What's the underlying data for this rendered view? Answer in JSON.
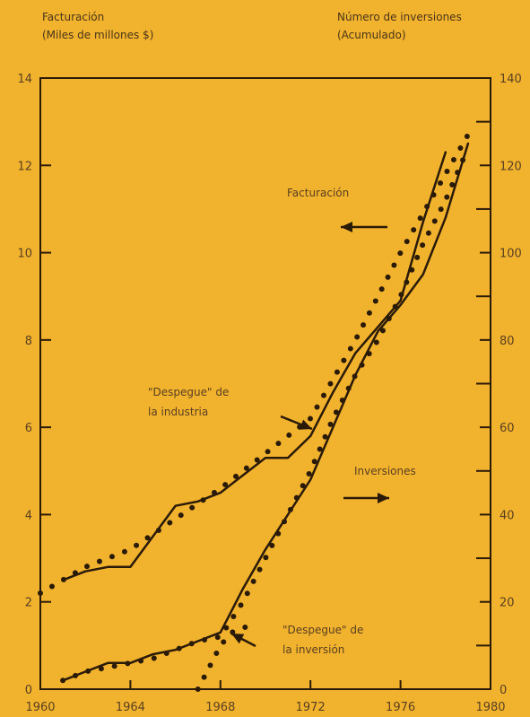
{
  "chart_data": {
    "type": "line",
    "left_axis_title": [
      "Facturación",
      "(Miles de millones $)"
    ],
    "right_axis_title": [
      "Número de inversiones",
      "(Acumulado)"
    ],
    "xlim": [
      1960,
      1980
    ],
    "ylim_left": [
      0,
      14
    ],
    "ylim_right": [
      0,
      140
    ],
    "x_ticks": [
      1960,
      1964,
      1968,
      1972,
      1976,
      1980
    ],
    "y_ticks_left": [
      0,
      2,
      4,
      6,
      8,
      10,
      12,
      14
    ],
    "y_ticks_right": [
      0,
      20,
      40,
      60,
      80,
      100,
      120,
      140
    ],
    "grid": false,
    "series": [
      {
        "key": "facturacion_real",
        "axis": "left",
        "style": "solid",
        "x": [
          1961,
          1962,
          1963,
          1964,
          1965,
          1966,
          1967,
          1968,
          1969,
          1970,
          1971,
          1972,
          1973,
          1974,
          1975,
          1976,
          1977,
          1978
        ],
        "y": [
          2.5,
          2.7,
          2.8,
          2.8,
          3.5,
          4.2,
          4.3,
          4.5,
          4.9,
          5.3,
          5.3,
          5.8,
          6.8,
          7.7,
          8.3,
          8.9,
          10.7,
          12.3
        ]
      },
      {
        "key": "facturacion_tendencia",
        "axis": "left",
        "style": "dotted",
        "x": [
          1960,
          1962,
          1964,
          1966,
          1968,
          1970,
          1972,
          1974,
          1976,
          1978,
          1979
        ],
        "y": [
          2.2,
          2.8,
          3.2,
          3.9,
          4.6,
          5.4,
          6.2,
          8.0,
          10.0,
          11.8,
          12.7
        ]
      },
      {
        "key": "inversiones_real",
        "axis": "right",
        "style": "solid",
        "x": [
          1961,
          1962,
          1963,
          1964,
          1965,
          1966,
          1967,
          1968,
          1969,
          1970,
          1971,
          1972,
          1973,
          1974,
          1975,
          1976,
          1977,
          1978,
          1979
        ],
        "y": [
          2,
          4,
          6,
          6,
          8,
          9,
          11,
          13,
          23,
          32,
          40,
          48,
          60,
          72,
          82,
          88,
          95,
          108,
          125
        ]
      },
      {
        "key": "inversiones_tendencia",
        "axis": "right",
        "style": "dotted",
        "x": [
          1961,
          1962,
          1963,
          1964,
          1965,
          1966,
          1967,
          1968,
          1969,
          1970,
          1971,
          1972,
          1973,
          1974,
          1975,
          1976,
          1977,
          1978,
          1979
        ],
        "y": [
          2,
          4,
          5,
          6,
          7,
          9,
          11,
          12,
          20,
          30,
          40,
          50,
          62,
          72,
          80,
          90,
          102,
          112,
          124
        ]
      },
      {
        "key": "despegue_inversion_branch",
        "axis": "right",
        "style": "dotted",
        "x": [
          1967,
          1967.5,
          1968,
          1968.5,
          1969,
          1969.5
        ],
        "y": [
          0,
          5,
          10,
          13,
          14,
          15
        ]
      }
    ],
    "annotations": [
      {
        "key": "facturacion",
        "text": "Facturación",
        "arrow": "left"
      },
      {
        "key": "inversiones",
        "text": "Inversiones",
        "arrow": "right"
      },
      {
        "key": "despegue_industria",
        "lines": [
          "\"Despegue\" de",
          "la industria"
        ]
      },
      {
        "key": "despegue_inversion",
        "lines": [
          "\"Despegue\" de",
          "la inversión"
        ]
      }
    ]
  },
  "colors": {
    "background": "#f1b22e",
    "ink": "#2a1a08"
  }
}
